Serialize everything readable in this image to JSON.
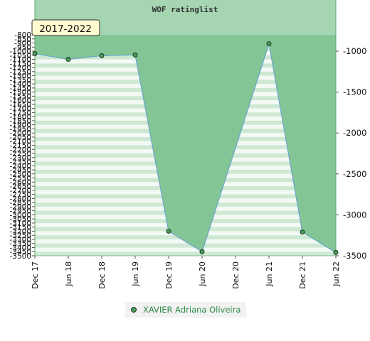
{
  "chart_data": {
    "type": "area",
    "title": "WOF ratinglist",
    "period_label": "2017-2022",
    "x_labels": [
      "Dec 17",
      "Jun 18",
      "Dec 18",
      "Jun 19",
      "Dec 19",
      "Jun 20",
      "Dec 20",
      "Jun 21",
      "Dec 21",
      "Jun 22"
    ],
    "series": [
      {
        "name": "XAVIER Adriana Oliveira",
        "points": [
          {
            "x": "Dec 17",
            "y": -1030
          },
          {
            "x": "Jun 18",
            "y": -1100
          },
          {
            "x": "Dec 18",
            "y": -1055
          },
          {
            "x": "Jun 19",
            "y": -1045
          },
          {
            "x": "Dec 19",
            "y": -3200
          },
          {
            "x": "Jun 20",
            "y": -3450
          },
          {
            "x": "Jun 21",
            "y": -910
          },
          {
            "x": "Dec 21",
            "y": -3210
          },
          {
            "x": "Jun 22",
            "y": -3460
          }
        ]
      }
    ],
    "y_left": {
      "min": -3500,
      "max": -800,
      "step": 50
    },
    "y_right": {
      "min": -3500,
      "max": -800,
      "ticks": [
        -1000,
        -1500,
        -2000,
        -2500,
        -3000,
        -3500
      ]
    },
    "colors": {
      "title_band": "#a6d5b2",
      "area_fill": "#84c595",
      "line": "#6fa8c8",
      "marker": "#4a9a5a",
      "stripe_light": "#f3f9f4",
      "stripe_dark": "#cde8d3",
      "period_bg": "#fffbd0",
      "legend_text": "#2e8b45"
    },
    "legend": {
      "position": "bottom",
      "label": "XAVIER Adriana Oliveira"
    }
  }
}
